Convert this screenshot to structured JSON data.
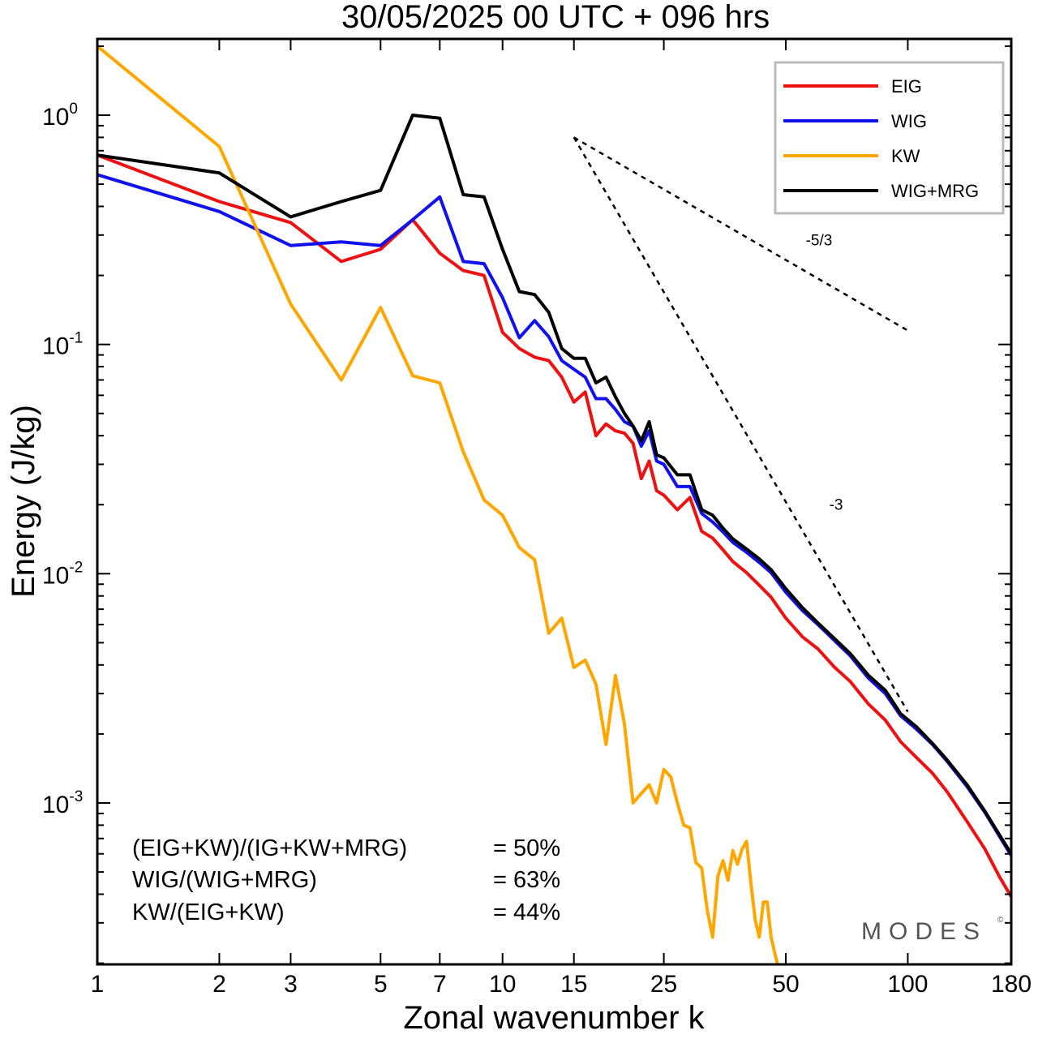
{
  "chart_data": {
    "type": "line",
    "title": "30/05/2025  00 UTC  + 096 hrs",
    "xlabel": "Zonal wavenumber k",
    "ylabel": "Energy (J/kg)",
    "xscale": "log",
    "yscale": "log",
    "xlim": [
      1,
      180
    ],
    "ylim": [
      0.0002,
      2.0
    ],
    "x_ticks": [
      1,
      2,
      3,
      5,
      7,
      10,
      15,
      25,
      50,
      100,
      180
    ],
    "x_tick_labels": [
      "1",
      "2",
      "3",
      "5",
      "7",
      "10",
      "15",
      "25",
      "50",
      "100",
      "180"
    ],
    "y_ticks": [
      {
        "value": 1.0,
        "base": "10",
        "exp": "0"
      },
      {
        "value": 0.1,
        "base": "10",
        "exp": "-1"
      },
      {
        "value": 0.01,
        "base": "10",
        "exp": "-2"
      },
      {
        "value": 0.001,
        "base": "10",
        "exp": "-3"
      }
    ],
    "legend_position": "top-right",
    "grid": false,
    "series": [
      {
        "name": "EIG",
        "color": "#ee1111",
        "points": [
          [
            1,
            0.67
          ],
          [
            2,
            0.42
          ],
          [
            3,
            0.34
          ],
          [
            4,
            0.23
          ],
          [
            5,
            0.26
          ],
          [
            6,
            0.35
          ],
          [
            7,
            0.25
          ],
          [
            8,
            0.21
          ],
          [
            9,
            0.2
          ],
          [
            10,
            0.113
          ],
          [
            11,
            0.096
          ],
          [
            12,
            0.088
          ],
          [
            13,
            0.085
          ],
          [
            14,
            0.072
          ],
          [
            15,
            0.056
          ],
          [
            16,
            0.062
          ],
          [
            17,
            0.04
          ],
          [
            18,
            0.045
          ],
          [
            19,
            0.042
          ],
          [
            20,
            0.041
          ],
          [
            21,
            0.037
          ],
          [
            22,
            0.026
          ],
          [
            23,
            0.031
          ],
          [
            24,
            0.023
          ],
          [
            25,
            0.022
          ],
          [
            27,
            0.019
          ],
          [
            29,
            0.0215
          ],
          [
            31,
            0.0153
          ],
          [
            33,
            0.0143
          ],
          [
            35,
            0.0127
          ],
          [
            37,
            0.0113
          ],
          [
            40,
            0.0101
          ],
          [
            43,
            0.0089
          ],
          [
            46,
            0.0079
          ],
          [
            50,
            0.0064
          ],
          [
            55,
            0.0053
          ],
          [
            60,
            0.0047
          ],
          [
            66,
            0.0039
          ],
          [
            72,
            0.0034
          ],
          [
            80,
            0.0027
          ],
          [
            88,
            0.0023
          ],
          [
            96,
            0.00185
          ],
          [
            105,
            0.00158
          ],
          [
            115,
            0.00135
          ],
          [
            125,
            0.00112
          ],
          [
            140,
            0.00083
          ],
          [
            155,
            0.00063
          ],
          [
            168,
            0.00048
          ],
          [
            180,
            0.00039
          ]
        ]
      },
      {
        "name": "WIG",
        "color": "#1111ee",
        "points": [
          [
            1,
            0.55
          ],
          [
            2,
            0.38
          ],
          [
            3,
            0.27
          ],
          [
            4,
            0.28
          ],
          [
            5,
            0.27
          ],
          [
            6,
            0.35
          ],
          [
            7,
            0.44
          ],
          [
            8,
            0.23
          ],
          [
            9,
            0.225
          ],
          [
            10,
            0.16
          ],
          [
            11,
            0.107
          ],
          [
            12,
            0.127
          ],
          [
            13,
            0.108
          ],
          [
            14,
            0.085
          ],
          [
            15,
            0.078
          ],
          [
            16,
            0.072
          ],
          [
            17,
            0.058
          ],
          [
            18,
            0.058
          ],
          [
            19,
            0.052
          ],
          [
            20,
            0.046
          ],
          [
            21,
            0.044
          ],
          [
            22,
            0.036
          ],
          [
            23,
            0.042
          ],
          [
            24,
            0.031
          ],
          [
            25,
            0.03
          ],
          [
            27,
            0.024
          ],
          [
            29,
            0.024
          ],
          [
            31,
            0.0183
          ],
          [
            33,
            0.0168
          ],
          [
            35,
            0.0152
          ],
          [
            37,
            0.0137
          ],
          [
            40,
            0.0124
          ],
          [
            43,
            0.0112
          ],
          [
            46,
            0.0101
          ],
          [
            50,
            0.0083
          ],
          [
            55,
            0.0069
          ],
          [
            60,
            0.006
          ],
          [
            66,
            0.0051
          ],
          [
            72,
            0.0044
          ],
          [
            80,
            0.0035
          ],
          [
            88,
            0.003
          ],
          [
            96,
            0.0024
          ],
          [
            105,
            0.0021
          ],
          [
            115,
            0.0018
          ],
          [
            125,
            0.00152
          ],
          [
            140,
            0.00118
          ],
          [
            155,
            0.00091
          ],
          [
            168,
            0.00072
          ],
          [
            180,
            0.00059
          ]
        ]
      },
      {
        "name": "KW",
        "color": "#ffa600",
        "points": [
          [
            1,
            2.0
          ],
          [
            2,
            0.73
          ],
          [
            3,
            0.15
          ],
          [
            4,
            0.07
          ],
          [
            5,
            0.145
          ],
          [
            6,
            0.073
          ],
          [
            7,
            0.068
          ],
          [
            8,
            0.034
          ],
          [
            9,
            0.021
          ],
          [
            10,
            0.018
          ],
          [
            11,
            0.013
          ],
          [
            12,
            0.0115
          ],
          [
            13,
            0.0055
          ],
          [
            14,
            0.0064
          ],
          [
            15,
            0.0039
          ],
          [
            16,
            0.0042
          ],
          [
            17,
            0.0033
          ],
          [
            18,
            0.0018
          ],
          [
            19,
            0.0036
          ],
          [
            20,
            0.0022
          ],
          [
            21,
            0.001
          ],
          [
            22,
            0.0011
          ],
          [
            23,
            0.0012
          ],
          [
            24,
            0.001
          ],
          [
            25,
            0.0014
          ],
          [
            26,
            0.0013
          ],
          [
            27,
            0.001
          ],
          [
            28,
            0.0008
          ],
          [
            29,
            0.00078
          ],
          [
            30,
            0.00055
          ],
          [
            31,
            0.00052
          ],
          [
            32,
            0.00034
          ],
          [
            33,
            0.00026
          ],
          [
            34,
            0.00048
          ],
          [
            35,
            0.00056
          ],
          [
            36,
            0.00046
          ],
          [
            37,
            0.00062
          ],
          [
            38,
            0.00054
          ],
          [
            39,
            0.00063
          ],
          [
            40,
            0.00068
          ],
          [
            41,
            0.00045
          ],
          [
            42,
            0.00031
          ],
          [
            43,
            0.00026
          ],
          [
            44,
            0.00037
          ],
          [
            45,
            0.00037
          ],
          [
            46,
            0.00026
          ],
          [
            47,
            0.00022
          ],
          [
            48,
            0.00019
          ]
        ]
      },
      {
        "name": "WIG+MRG",
        "color": "#000000",
        "points": [
          [
            1,
            0.67
          ],
          [
            2,
            0.56
          ],
          [
            3,
            0.36
          ],
          [
            4,
            0.42
          ],
          [
            5,
            0.47
          ],
          [
            6,
            1.0
          ],
          [
            7,
            0.97
          ],
          [
            8,
            0.45
          ],
          [
            9,
            0.44
          ],
          [
            10,
            0.26
          ],
          [
            11,
            0.17
          ],
          [
            12,
            0.165
          ],
          [
            13,
            0.138
          ],
          [
            14,
            0.096
          ],
          [
            15,
            0.087
          ],
          [
            16,
            0.087
          ],
          [
            17,
            0.068
          ],
          [
            18,
            0.072
          ],
          [
            19,
            0.059
          ],
          [
            20,
            0.05
          ],
          [
            21,
            0.044
          ],
          [
            22,
            0.038
          ],
          [
            23,
            0.046
          ],
          [
            24,
            0.033
          ],
          [
            25,
            0.032
          ],
          [
            27,
            0.027
          ],
          [
            29,
            0.027
          ],
          [
            31,
            0.019
          ],
          [
            33,
            0.018
          ],
          [
            35,
            0.0158
          ],
          [
            37,
            0.0142
          ],
          [
            40,
            0.0128
          ],
          [
            43,
            0.0116
          ],
          [
            46,
            0.0104
          ],
          [
            50,
            0.0086
          ],
          [
            55,
            0.0071
          ],
          [
            60,
            0.0061
          ],
          [
            66,
            0.0052
          ],
          [
            72,
            0.0045
          ],
          [
            80,
            0.0036
          ],
          [
            88,
            0.0031
          ],
          [
            96,
            0.00245
          ],
          [
            105,
            0.00215
          ],
          [
            115,
            0.00182
          ],
          [
            125,
            0.00154
          ],
          [
            140,
            0.0012
          ],
          [
            155,
            0.00092
          ],
          [
            168,
            0.00073
          ],
          [
            180,
            0.0006
          ]
        ]
      }
    ],
    "reference_lines": [
      {
        "label": "-5/3",
        "slope": "-5/3",
        "from": [
          15,
          0.8
        ],
        "to": [
          100,
          0.115
        ],
        "label_at": [
          56,
          0.27
        ]
      },
      {
        "label": "-3",
        "slope": "-3",
        "from": [
          15,
          0.8
        ],
        "to": [
          100,
          0.0025
        ],
        "label_at": [
          64,
          0.019
        ]
      }
    ],
    "ratios": [
      {
        "label": "(EIG+KW)/(IG+KW+MRG)",
        "value": "= 50%"
      },
      {
        "label": "WIG/(WIG+MRG)",
        "value": "= 63%"
      },
      {
        "label": "KW/(EIG+KW)",
        "value": "= 44%"
      }
    ]
  },
  "watermark": {
    "text": "MODES",
    "symbol": "©"
  }
}
